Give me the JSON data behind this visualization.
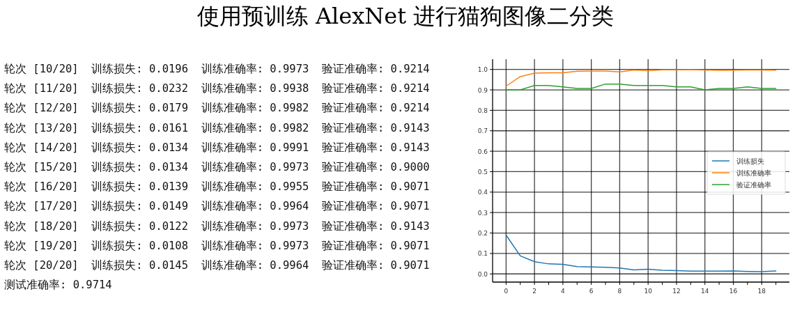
{
  "chart_data": [
    {
      "type": "other",
      "title": "使用预训练 AlexNet 进行猫狗图像二分类",
      "annotations": [
        "轮次 [10/20]  训练损失: 0.0196  训练准确率: 0.9973  验证准确率: 0.9214",
        "轮次 [11/20]  训练损失: 0.0232  训练准确率: 0.9938  验证准确率: 0.9214",
        "轮次 [12/20]  训练损失: 0.0179  训练准确率: 0.9982  验证准确率: 0.9214",
        "轮次 [13/20]  训练损失: 0.0161  训练准确率: 0.9982  验证准确率: 0.9143",
        "轮次 [14/20]  训练损失: 0.0134  训练准确率: 0.9991  验证准确率: 0.9143",
        "轮次 [15/20]  训练损失: 0.0134  训练准确率: 0.9973  验证准确率: 0.9000",
        "轮次 [16/20]  训练损失: 0.0139  训练准确率: 0.9955  验证准确率: 0.9071",
        "轮次 [17/20]  训练损失: 0.0149  训练准确率: 0.9964  验证准确率: 0.9071",
        "轮次 [18/20]  训练损失: 0.0122  训练准确率: 0.9973  验证准确率: 0.9143",
        "轮次 [19/20]  训练损失: 0.0108  训练准确率: 0.9973  验证准确率: 0.9071",
        "轮次 [20/20]  训练损失: 0.0145  训练准确率: 0.9964  验证准确率: 0.9071",
        "测试准确率: 0.9714"
      ]
    },
    {
      "type": "line",
      "x": [
        0,
        1,
        2,
        3,
        4,
        5,
        6,
        7,
        8,
        9,
        10,
        11,
        12,
        13,
        14,
        15,
        16,
        17,
        18,
        19
      ],
      "series": [
        {
          "name": "训练损失",
          "color": "#1f77b4",
          "values": [
            0.19,
            0.088,
            0.06,
            0.049,
            0.047,
            0.036,
            0.034,
            0.032,
            0.029,
            0.0196,
            0.0232,
            0.0179,
            0.0161,
            0.0134,
            0.0134,
            0.0139,
            0.0149,
            0.0122,
            0.0108,
            0.0145
          ]
        },
        {
          "name": "训练准确率",
          "color": "#ff7f0e",
          "values": [
            0.918,
            0.965,
            0.982,
            0.984,
            0.984,
            0.991,
            0.992,
            0.992,
            0.988,
            0.9973,
            0.9938,
            0.9982,
            0.9982,
            0.9991,
            0.9973,
            0.9955,
            0.9964,
            0.9973,
            0.9973,
            0.9964
          ]
        },
        {
          "name": "验证准确率",
          "color": "#2ca02c",
          "values": [
            0.9,
            0.9,
            0.9214,
            0.9214,
            0.9143,
            0.9071,
            0.9071,
            0.9286,
            0.9286,
            0.9214,
            0.9214,
            0.9214,
            0.9143,
            0.9143,
            0.9,
            0.9071,
            0.9071,
            0.9143,
            0.9071,
            0.9071
          ]
        }
      ],
      "xlim": [
        -0.95,
        19.95
      ],
      "ylim": [
        -0.04,
        1.05
      ],
      "xticks": [
        0,
        {
          "value": 1,
          "label": null
        },
        2,
        {
          "value": 3,
          "label": null
        },
        4,
        {
          "value": 5,
          "label": null
        },
        6,
        {
          "value": 7,
          "label": null
        },
        8,
        {
          "value": 9,
          "label": null
        },
        10,
        {
          "value": 11,
          "label": null
        },
        12,
        {
          "value": 13,
          "label": null
        },
        14,
        {
          "value": 15,
          "label": null
        },
        16,
        {
          "value": 17,
          "label": null
        },
        18,
        {
          "value": 19,
          "label": null
        }
      ],
      "yticks": [
        {
          "value": 0,
          "label": "0.0"
        },
        {
          "value": 0.1,
          "label": "0.1"
        },
        {
          "value": 0.2,
          "label": "0.2"
        },
        {
          "value": 0.3,
          "label": "0.3"
        },
        {
          "value": 0.4,
          "label": "0.4"
        },
        {
          "value": 0.5,
          "label": "0.5"
        },
        {
          "value": 0.6,
          "label": "0.6"
        },
        {
          "value": 0.7,
          "label": "0.7"
        },
        {
          "value": 0.8,
          "label": "0.8"
        },
        {
          "value": 0.9,
          "label": "0.9"
        },
        {
          "value": 1,
          "label": "1.0"
        }
      ],
      "grid": true,
      "legend": "right",
      "marker": "none",
      "line_style": "solid"
    }
  ]
}
